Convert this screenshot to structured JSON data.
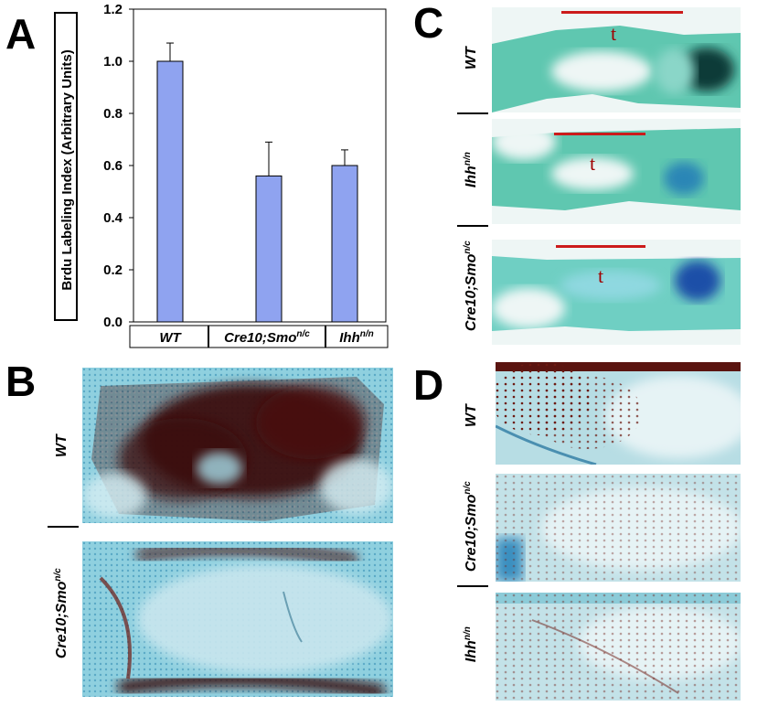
{
  "panels": {
    "a": "A",
    "b": "B",
    "c": "C",
    "d": "D"
  },
  "chart_data": {
    "type": "bar",
    "categories": [
      "WT",
      "Cre10;Smo",
      "Ihh"
    ],
    "category_superscripts": [
      "",
      "n/c",
      "n/n"
    ],
    "values": [
      1.0,
      0.56,
      0.6
    ],
    "errors": [
      0.07,
      0.13,
      0.06
    ],
    "ylabel": "Brdu Labeling Index (Arbitrary Units)",
    "ylim": [
      0,
      1.2
    ],
    "yticks": [
      "0.0",
      "0.2",
      "0.4",
      "0.6",
      "0.8",
      "1.0",
      "1.2"
    ],
    "bar_color": "#8fa3f0",
    "grid": false
  },
  "panel_b": {
    "rows": [
      {
        "label": "WT",
        "sup": ""
      },
      {
        "label": "Cre10;Smo",
        "sup": "n/c"
      }
    ]
  },
  "panel_c": {
    "rows": [
      {
        "label": "WT",
        "sup": "",
        "marker": "t"
      },
      {
        "label": "Ihh",
        "sup": "n/n",
        "marker": "t"
      },
      {
        "label": "Cre10;Smo",
        "sup": "n/c",
        "marker": "t"
      }
    ]
  },
  "panel_d": {
    "rows": [
      {
        "label": "WT",
        "sup": ""
      },
      {
        "label": "Cre10;Smo",
        "sup": "n/c"
      },
      {
        "label": "Ihh",
        "sup": "n/n"
      }
    ]
  }
}
